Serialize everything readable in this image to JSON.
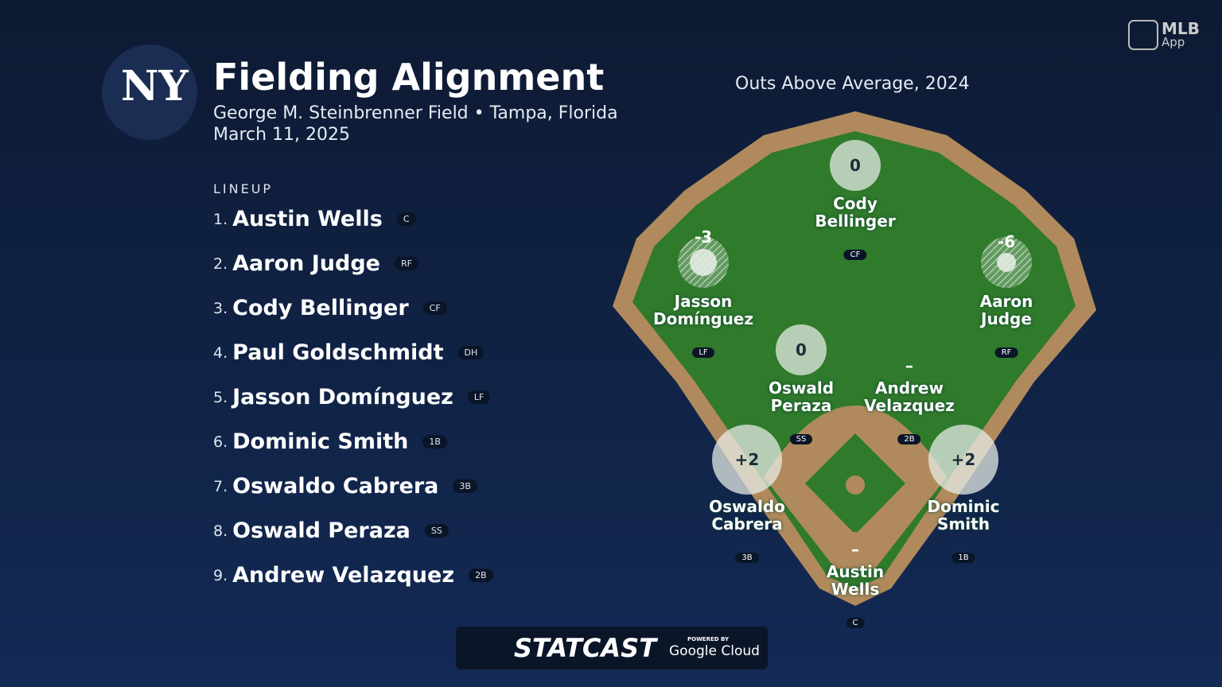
{
  "header": {
    "logo": "NY",
    "title": "Fielding Alignment",
    "venue": "George M. Steinbrenner Field • Tampa, Florida",
    "date": "March 11, 2025"
  },
  "brand": {
    "name": "MLB",
    "sub": "App"
  },
  "lineup": {
    "heading": "LINEUP",
    "players": [
      {
        "num": "1.",
        "name": "Austin Wells",
        "pos": "C"
      },
      {
        "num": "2.",
        "name": "Aaron Judge",
        "pos": "RF"
      },
      {
        "num": "3.",
        "name": "Cody Bellinger",
        "pos": "CF"
      },
      {
        "num": "4.",
        "name": "Paul Goldschmidt",
        "pos": "DH"
      },
      {
        "num": "5.",
        "name": "Jasson Domínguez",
        "pos": "LF"
      },
      {
        "num": "6.",
        "name": "Dominic Smith",
        "pos": "1B"
      },
      {
        "num": "7.",
        "name": "Oswaldo Cabrera",
        "pos": "3B"
      },
      {
        "num": "8.",
        "name": "Oswald Peraza",
        "pos": "SS"
      },
      {
        "num": "9.",
        "name": "Andrew Velazquez",
        "pos": "2B"
      }
    ]
  },
  "field": {
    "title": "Outs Above Average, 2024",
    "fielders": [
      {
        "name": "Cody Bellinger",
        "pos": "CF",
        "oaa": "0"
      },
      {
        "name": "Jasson Domínguez",
        "pos": "LF",
        "oaa": "-3"
      },
      {
        "name": "Aaron Judge",
        "pos": "RF",
        "oaa": "-6"
      },
      {
        "name": "Oswald Peraza",
        "pos": "SS",
        "oaa": "0"
      },
      {
        "name": "Andrew Velazquez",
        "pos": "2B",
        "oaa": "–"
      },
      {
        "name": "Oswaldo Cabrera",
        "pos": "3B",
        "oaa": "+2"
      },
      {
        "name": "Dominic Smith",
        "pos": "1B",
        "oaa": "+2"
      },
      {
        "name": "Austin Wells",
        "pos": "C",
        "oaa": "–"
      }
    ]
  },
  "footer": {
    "brand": "STATCAST",
    "powered": "POWERED BY",
    "cloud": "Google Cloud"
  }
}
